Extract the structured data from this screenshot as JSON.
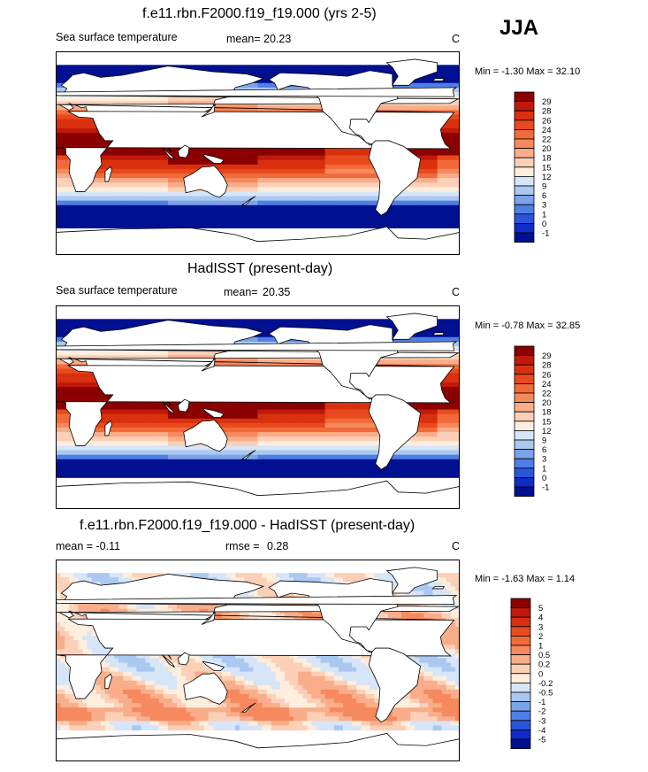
{
  "season": "JJA",
  "chart_data": [
    {
      "type": "heatmap",
      "title": "f.e11.rbn.F2000.f19_f19.000 (yrs 2-5)",
      "left_label": "Sea surface temperature",
      "stat_label": "mean=",
      "stat_value": "20.23",
      "units": "C",
      "min_max_label": "Min =  -1.30 Max =  32.10",
      "min": -1.3,
      "max": 32.1,
      "colorbar": {
        "labels": [
          "29",
          "28",
          "26",
          "24",
          "22",
          "20",
          "18",
          "15",
          "12",
          "9",
          "6",
          "3",
          "1",
          "0",
          "-1"
        ],
        "colors": [
          "#8b0000",
          "#c0190a",
          "#d9300f",
          "#e84a1d",
          "#f26a3a",
          "#f68a5e",
          "#f9ad8a",
          "#fbd0b6",
          "#fdeede",
          "#d6e5f7",
          "#aac8f0",
          "#7ba3ea",
          "#4f7ee6",
          "#2a55dd",
          "#0f2bc8",
          "#001090"
        ]
      }
    },
    {
      "type": "heatmap",
      "title": "HadISST (present-day)",
      "left_label": "Sea surface temperature",
      "stat_label": "mean=",
      "stat_value": "20.35",
      "units": "C",
      "min_max_label": "Min =  -0.78 Max =  32.85",
      "min": -0.78,
      "max": 32.85,
      "colorbar": {
        "labels": [
          "29",
          "28",
          "26",
          "24",
          "22",
          "20",
          "18",
          "15",
          "12",
          "9",
          "6",
          "3",
          "1",
          "0",
          "-1"
        ],
        "colors": [
          "#8b0000",
          "#c0190a",
          "#d9300f",
          "#e84a1d",
          "#f26a3a",
          "#f68a5e",
          "#f9ad8a",
          "#fbd0b6",
          "#fdeede",
          "#d6e5f7",
          "#aac8f0",
          "#7ba3ea",
          "#4f7ee6",
          "#2a55dd",
          "#0f2bc8",
          "#001090"
        ]
      }
    },
    {
      "type": "heatmap",
      "title": "f.e11.rbn.F2000.f19_f19.000 - HadISST (present-day)",
      "left_label": "mean =  -0.11",
      "stat_label": "rmse =",
      "stat_value": "0.28",
      "units": "C",
      "min_max_label": "Min =  -1.63 Max =   1.14",
      "min": -1.63,
      "max": 1.14,
      "colorbar": {
        "labels": [
          "5",
          "4",
          "3",
          "2",
          "1",
          "0.5",
          "0.2",
          "0",
          "-0.2",
          "-0.5",
          "-1",
          "-2",
          "-3",
          "-4",
          "-5"
        ],
        "colors": [
          "#8b0000",
          "#c0190a",
          "#d9300f",
          "#e84a1d",
          "#f26a3a",
          "#f68a5e",
          "#f9ad8a",
          "#fbd0b6",
          "#fdeede",
          "#d6e5f7",
          "#aac8f0",
          "#7ba3ea",
          "#4f7ee6",
          "#2a55dd",
          "#0f2bc8",
          "#001090"
        ]
      }
    }
  ],
  "colors": {
    "land": "#ffffff",
    "coast": "#000000",
    "frame": "#000000"
  }
}
